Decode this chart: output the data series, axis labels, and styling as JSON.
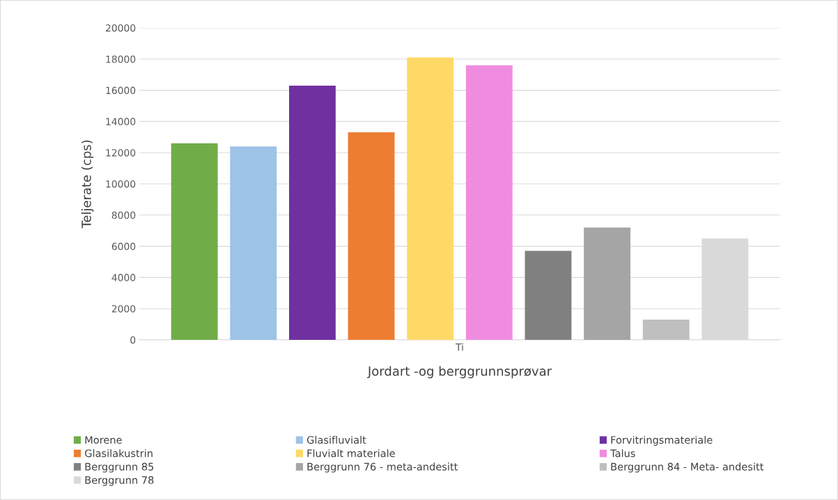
{
  "chart_data": {
    "type": "bar",
    "categories": [
      "Ti"
    ],
    "xlabel": "Jordart -og berggrunnsprøvar",
    "ylabel": "Teljerate (cps)",
    "ylim": [
      0,
      20000
    ],
    "yticks": [
      0,
      2000,
      4000,
      6000,
      8000,
      10000,
      12000,
      14000,
      16000,
      18000,
      20000
    ],
    "grid": "y",
    "legend": "bottom",
    "series": [
      {
        "name": "Morene",
        "color": "#70ad47",
        "values": [
          12600
        ]
      },
      {
        "name": "Glasifluvialt",
        "color": "#9dc3e6",
        "values": [
          12400
        ]
      },
      {
        "name": "Forvitringsmateriale",
        "color": "#7030a0",
        "values": [
          16300
        ]
      },
      {
        "name": "Glasilakustrin",
        "color": "#ed7d31",
        "values": [
          13300
        ]
      },
      {
        "name": "Fluvialt materiale",
        "color": "#ffd966",
        "values": [
          18100
        ]
      },
      {
        "name": "Talus",
        "color": "#f08ce0",
        "values": [
          17600
        ]
      },
      {
        "name": "Berggrunn 85",
        "color": "#808080",
        "values": [
          5700
        ]
      },
      {
        "name": "Berggrunn 76 - meta-andesitt",
        "color": "#a5a5a5",
        "values": [
          7200
        ]
      },
      {
        "name": "Berggrunn 84 - Meta- andesitt",
        "color": "#bfbfbf",
        "values": [
          1300
        ]
      },
      {
        "name": "Berggrunn 78",
        "color": "#d9d9d9",
        "values": [
          6500
        ]
      }
    ]
  }
}
